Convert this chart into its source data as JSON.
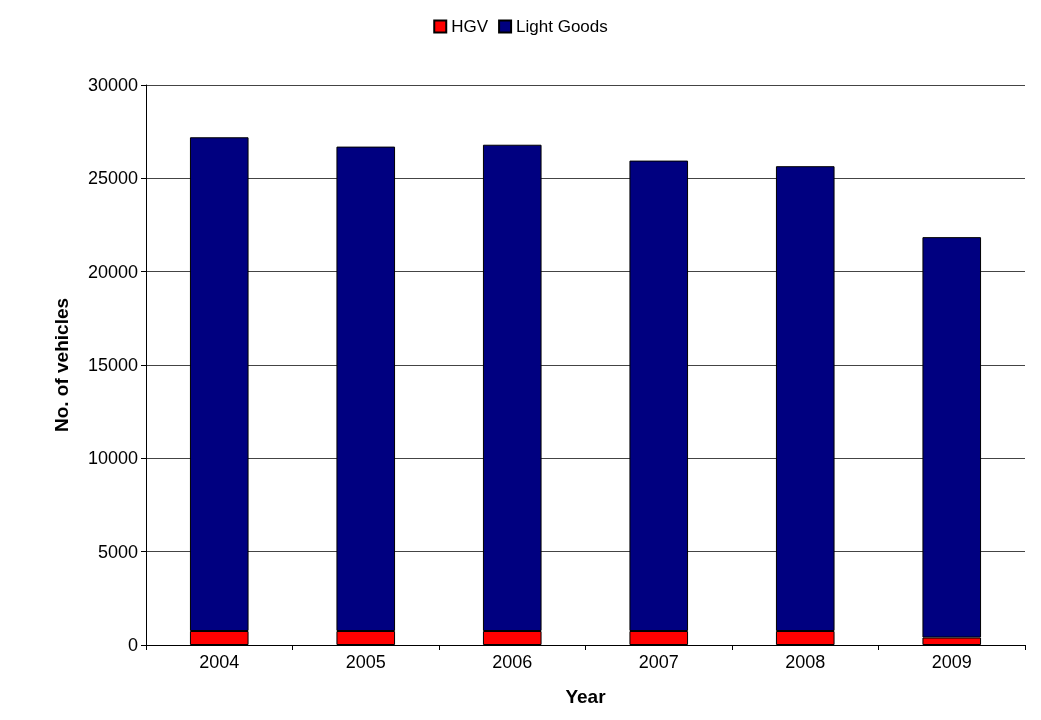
{
  "chart_data": {
    "type": "bar",
    "stacked": true,
    "xlabel": "Year",
    "ylabel": "No. of vehicles",
    "categories": [
      "2004",
      "2005",
      "2006",
      "2007",
      "2008",
      "2009"
    ],
    "series": [
      {
        "name": "HGV",
        "color": "#ff0000",
        "values": [
          750,
          750,
          750,
          750,
          750,
          400
        ]
      },
      {
        "name": "Light Goods",
        "color": "#000080",
        "values": [
          26450,
          25950,
          26050,
          25200,
          24900,
          21450
        ]
      }
    ],
    "ylim": [
      0,
      30000
    ],
    "yticks": [
      0,
      5000,
      10000,
      15000,
      20000,
      25000,
      30000
    ],
    "grid": "y",
    "legend": "top"
  }
}
